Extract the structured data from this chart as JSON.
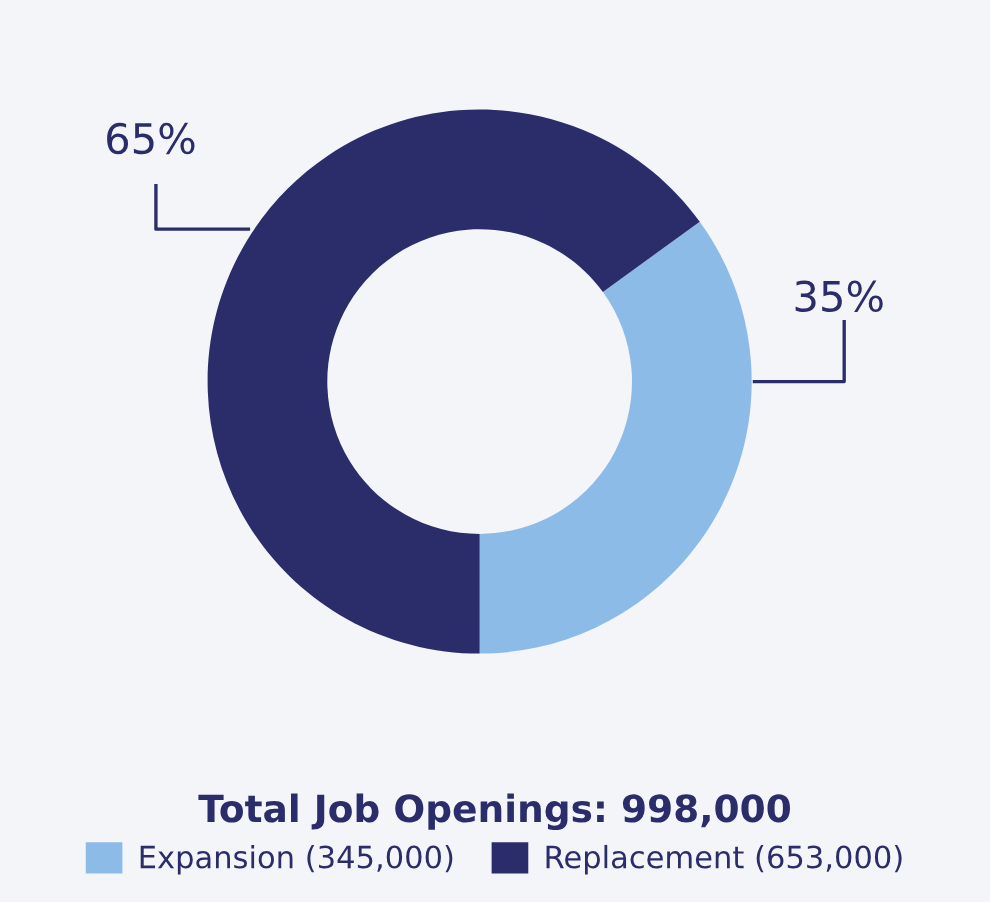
{
  "chart_data": {
    "type": "donut",
    "title": "Total Job Openings: 998,000",
    "categories": [
      "Expansion (345,000)",
      "Replacement (653,000)"
    ],
    "values": [
      35,
      65
    ],
    "value_labels": [
      "35%",
      "65%"
    ],
    "colors": [
      "#8dbbe8",
      "#2b2d6b"
    ],
    "legend": "bottom"
  }
}
